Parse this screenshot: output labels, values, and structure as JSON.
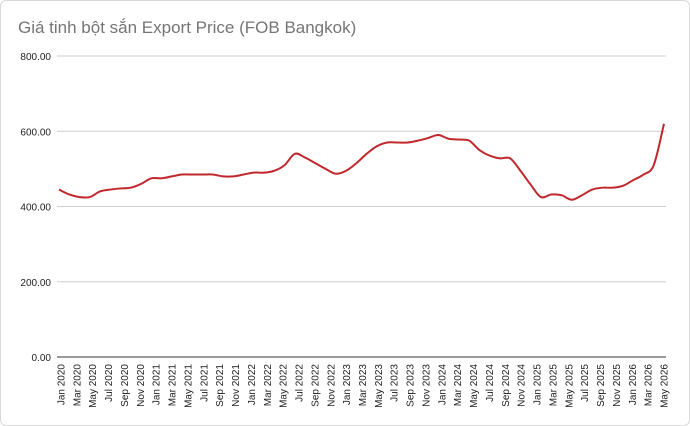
{
  "chart_data": {
    "type": "line",
    "title": "Giá tinh bột sắn Export Price (FOB Bangkok)",
    "xlabel": "",
    "ylabel": "",
    "ylim": [
      0,
      800
    ],
    "yticks": [
      "0.00",
      "200.00",
      "400.00",
      "600.00",
      "800.00"
    ],
    "ytick_values": [
      0,
      200,
      400,
      600,
      800
    ],
    "grid": true,
    "legend": "none",
    "line_color": "#c0282d",
    "xtick_labels": [
      "Jan 2020",
      "Mar 2020",
      "May 2020",
      "Jul 2020",
      "Sep 2020",
      "Nov 2020",
      "Jan 2021",
      "Mar 2021",
      "May 2021",
      "Jul 2021",
      "Sep 2021",
      "Nov 2021",
      "Jan 2022",
      "Mar 2022",
      "May 2022",
      "Jul 2022",
      "Sep 2022",
      "Nov 2022",
      "Jan 2023",
      "Mar 2023",
      "May 2023",
      "Jul 2023",
      "Sep 2023",
      "Nov 2023",
      "Jan 2024",
      "Mar 2024",
      "May 2024",
      "Jul 2024",
      "Sep 2024",
      "Nov 2024",
      "Jan 2025",
      "Mar 2025",
      "May 2025",
      "Jul 2025",
      "Sep 2025",
      "Nov 2025",
      "Jan 2026",
      "Mar 2026",
      "May 2026"
    ],
    "series": [
      {
        "values": [
          445,
          432,
          425,
          425,
          440,
          445,
          448,
          450,
          460,
          475,
          475,
          480,
          485,
          485,
          485,
          485,
          480,
          480,
          485,
          490,
          490,
          495,
          510,
          540,
          530,
          515,
          500,
          487,
          495,
          515,
          540,
          560,
          570,
          570,
          570,
          575,
          582,
          590,
          580,
          578,
          575,
          550,
          535,
          528,
          528,
          495,
          458,
          425,
          432,
          430,
          418,
          430,
          445,
          450,
          450,
          455,
          470,
          485,
          510,
          620
        ]
      }
    ]
  }
}
